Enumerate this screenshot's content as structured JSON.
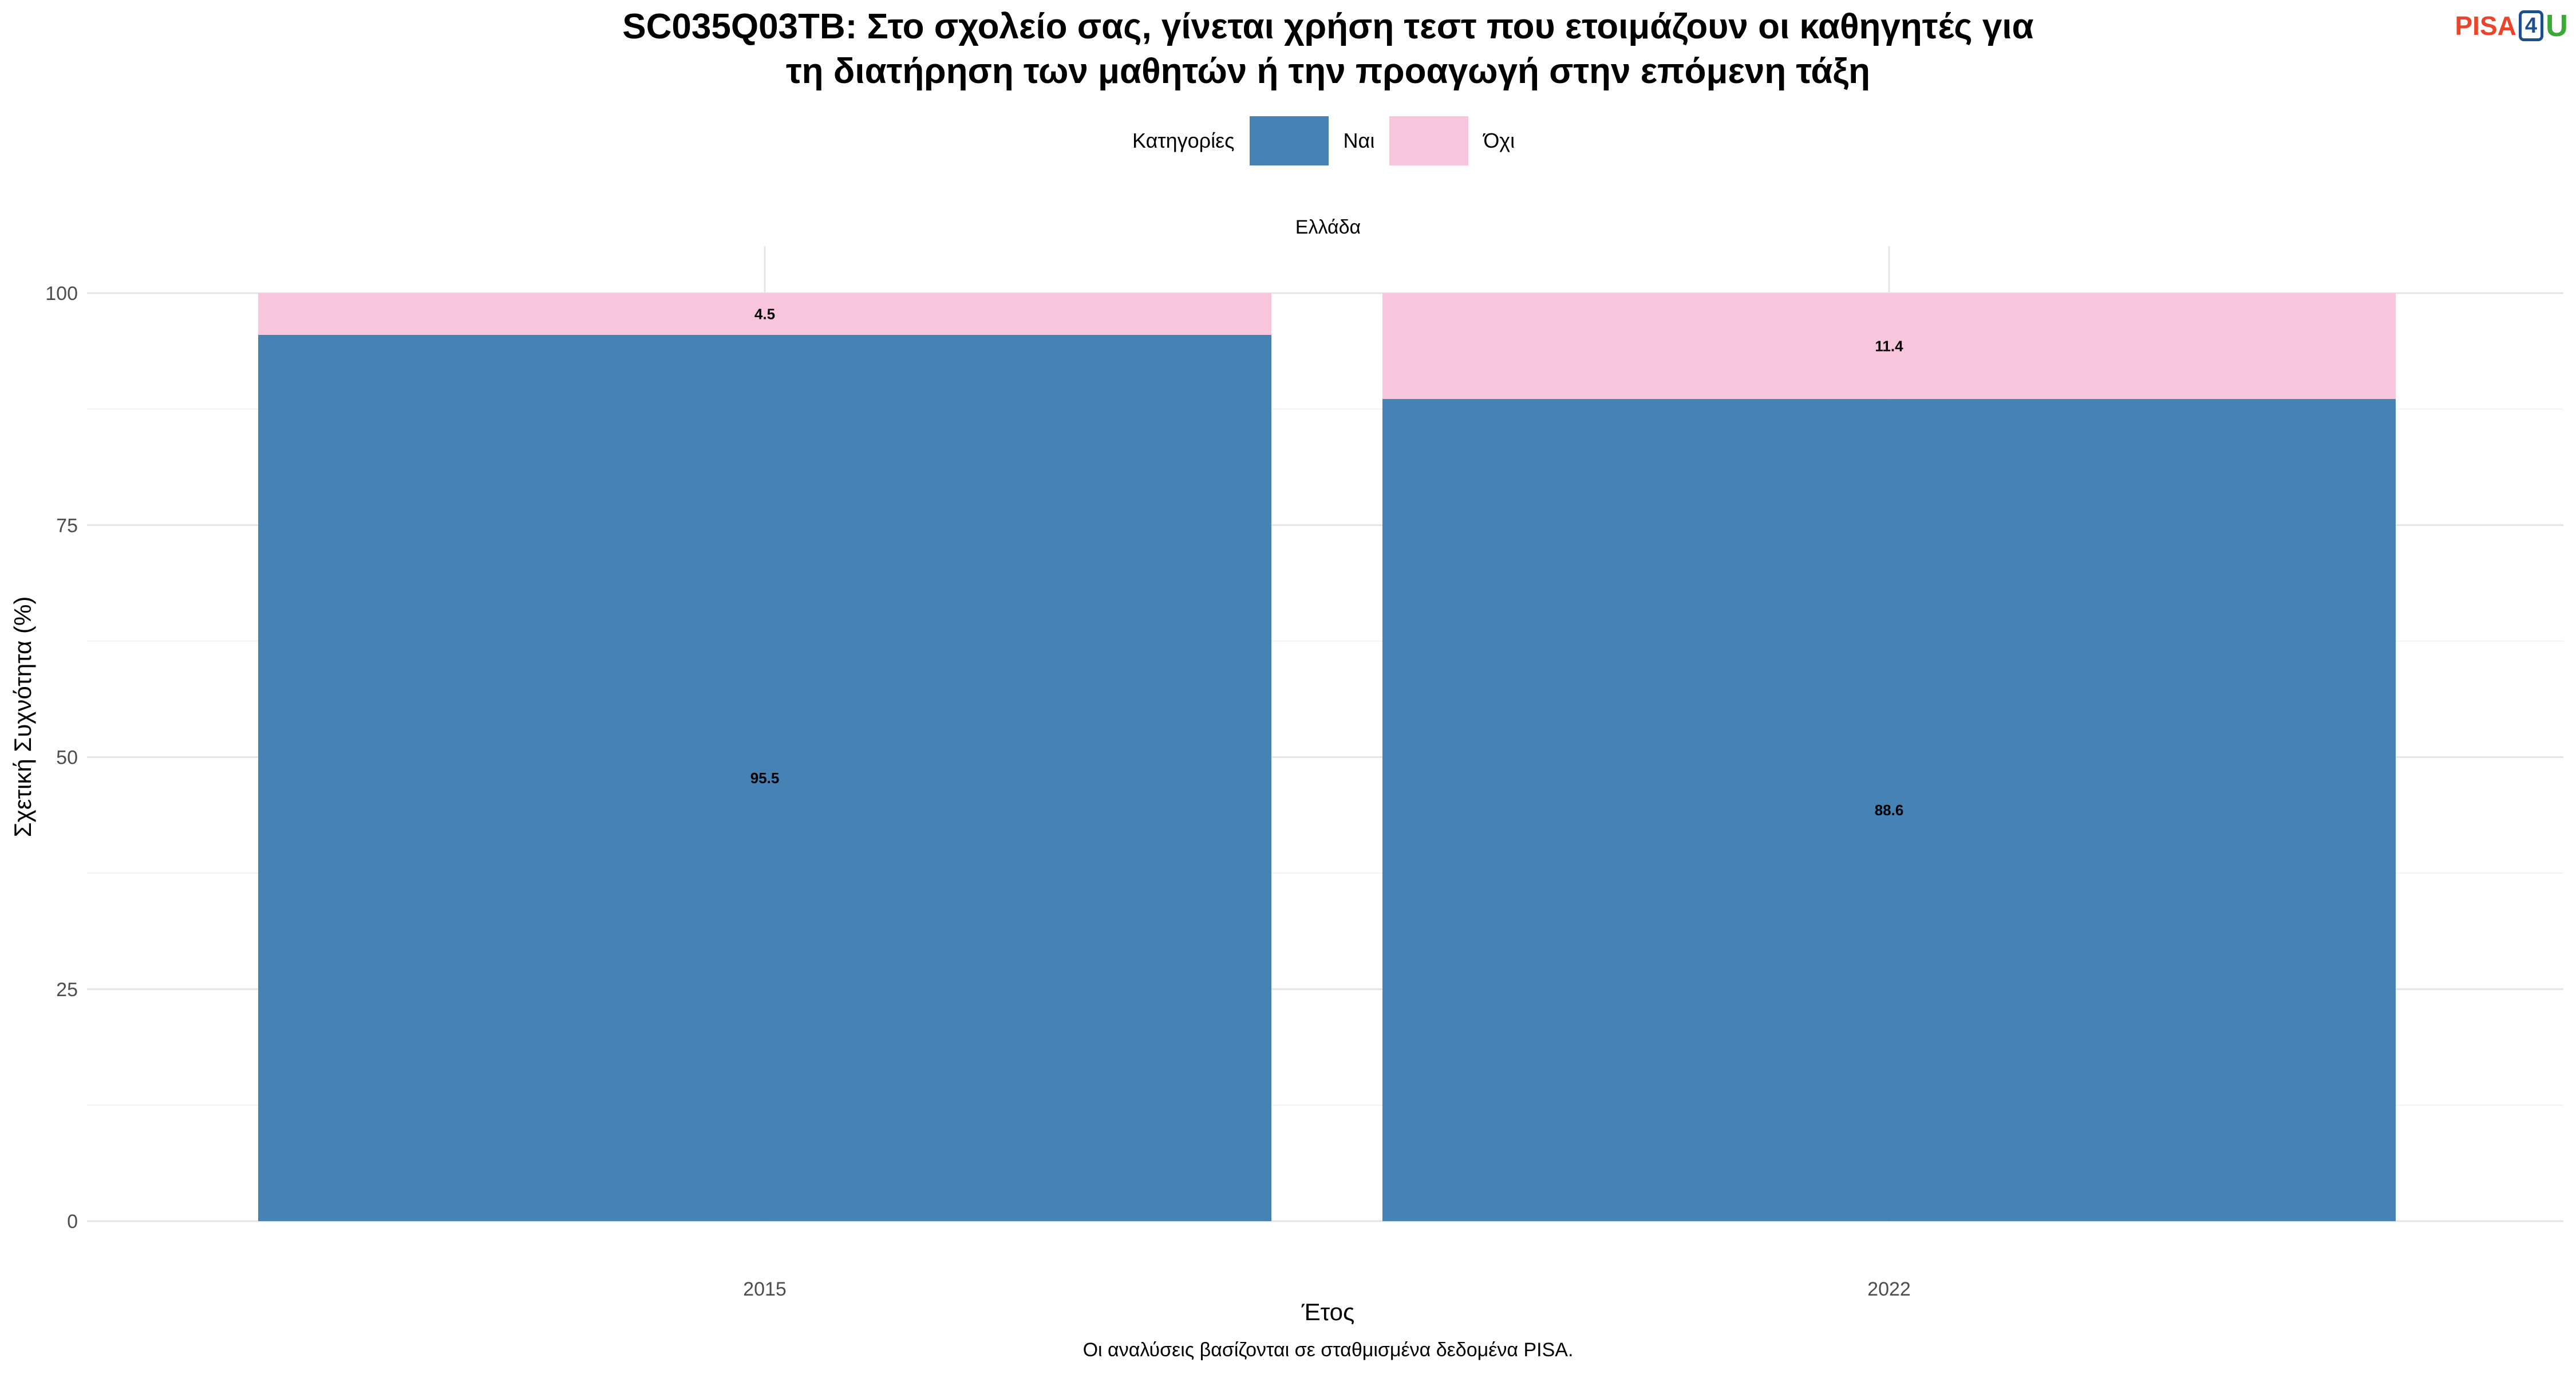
{
  "header": {
    "title_line1": "SC035Q03TB: Στο σχολείο σας, γίνεται χρήση τεστ που ετοιμάζουν οι καθηγητές για",
    "title_line2": "τη διατήρηση των μαθητών ή την προαγωγή στην επόμενη τάξη"
  },
  "logo": {
    "part1": "PISA",
    "part2": "4",
    "part3": "U"
  },
  "legend": {
    "title": "Κατηγορίες"
  },
  "facet_label": "Ελλάδα",
  "caption": "Οι αναλύσεις βασίζονται σε σταθμισμένα δεδομένα PISA.",
  "chart_data": {
    "type": "bar",
    "stacked": true,
    "categories": [
      "2015",
      "2022"
    ],
    "series": [
      {
        "name": "Ναι",
        "color": "#4682b4",
        "values": [
          95.5,
          88.6
        ]
      },
      {
        "name": "Όχι",
        "color": "#f7c6dc",
        "values": [
          4.5,
          11.4
        ]
      }
    ],
    "xlabel": "Έτος",
    "ylabel": "Σχετική Συχνότητα (%)",
    "ylim": [
      0,
      100
    ],
    "yticks": [
      0,
      25,
      50,
      75,
      100
    ],
    "grid": true,
    "legend_position": "top"
  }
}
